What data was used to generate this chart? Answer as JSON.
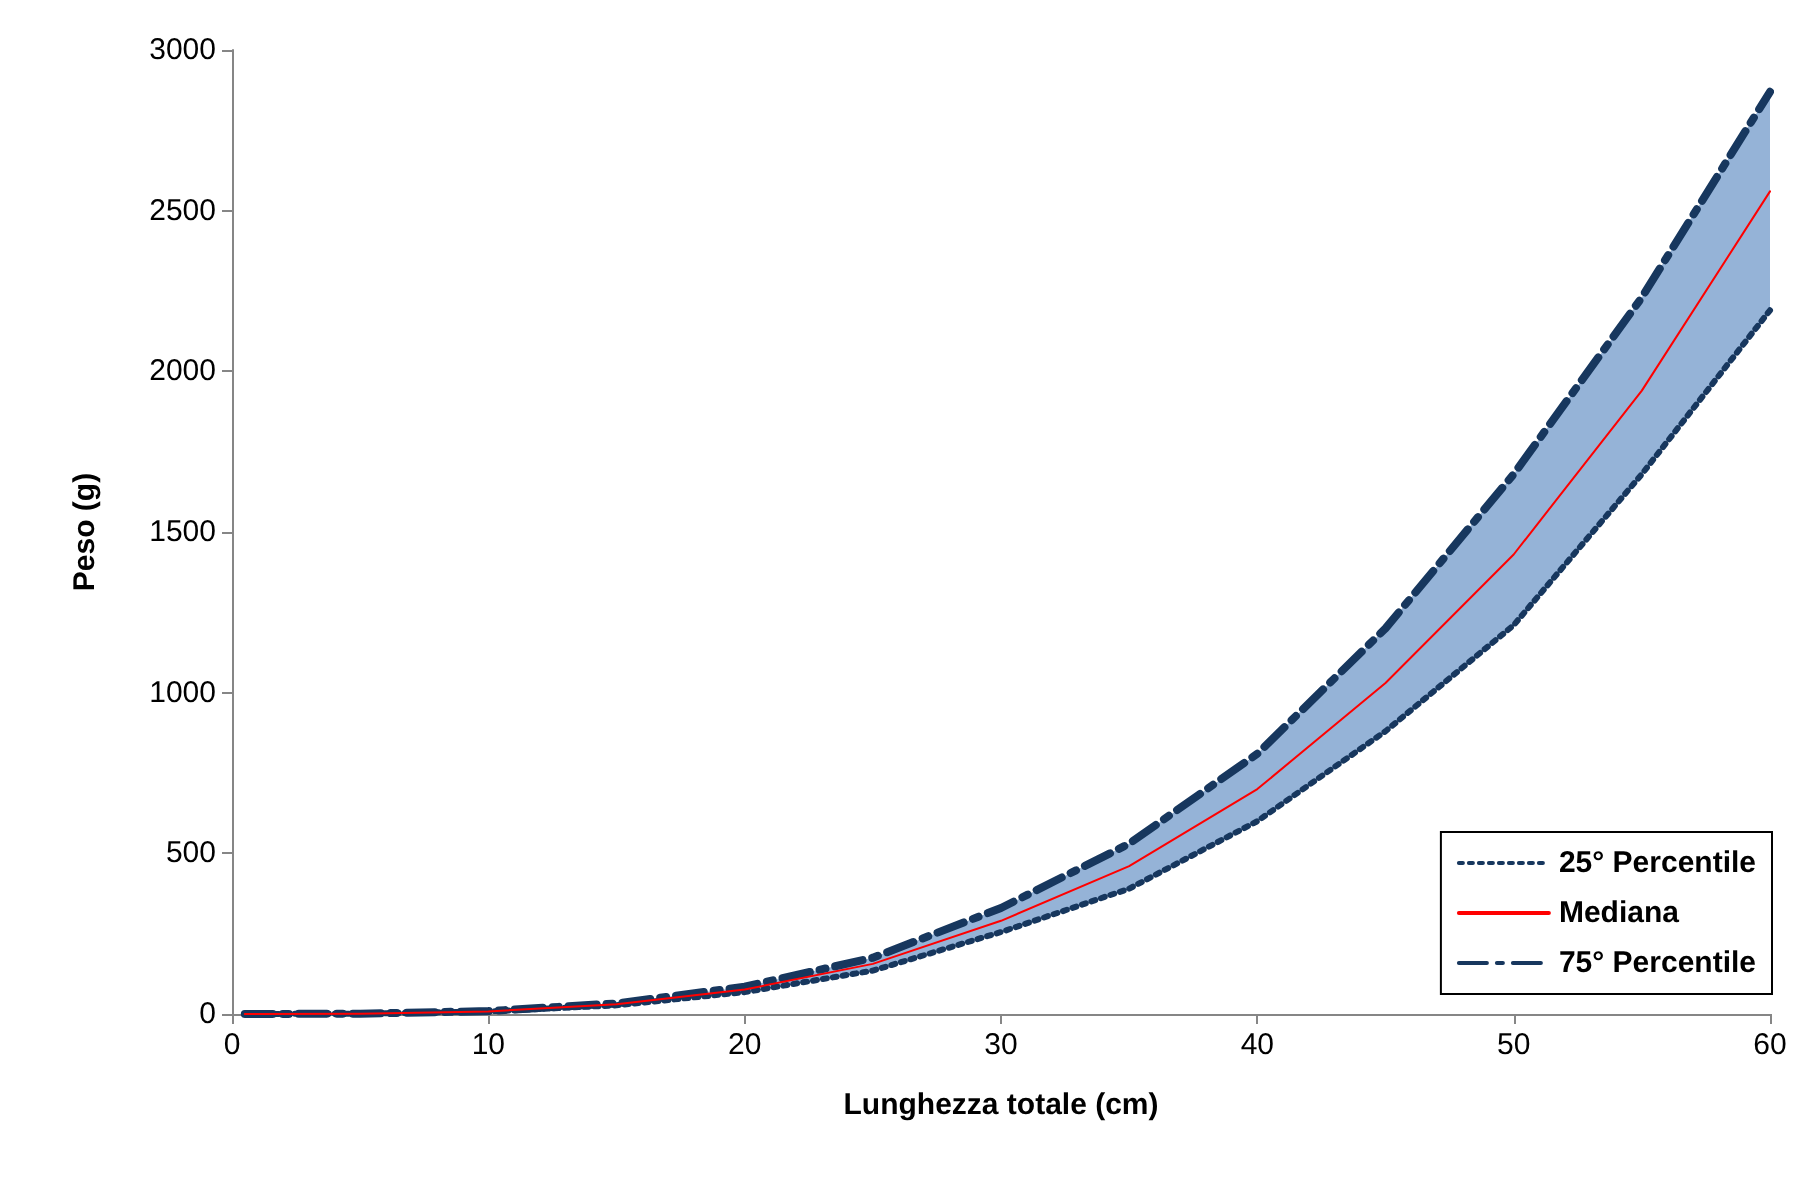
{
  "chart_data": {
    "type": "line",
    "xlabel": "Lunghezza totale (cm)",
    "ylabel": "Peso (g)",
    "x": [
      0.5,
      5,
      10,
      15,
      20,
      25,
      30,
      35,
      40,
      45,
      50,
      55,
      60
    ],
    "series": [
      {
        "name": "25° Percentile",
        "color": "#17375e",
        "line_style": "dotted",
        "values": [
          0,
          1,
          8,
          27,
          68,
          135,
          255,
          390,
          600,
          880,
          1210,
          1680,
          2190
        ]
      },
      {
        "name": "Mediana",
        "color": "#ff0000",
        "line_style": "solid",
        "values": [
          0,
          1,
          8,
          30,
          76,
          156,
          290,
          460,
          700,
          1030,
          1430,
          1940,
          2560
        ],
        "lower": [
          0,
          1,
          8,
          27,
          68,
          135,
          255,
          390,
          600,
          880,
          1210,
          1680,
          2190
        ],
        "upper": [
          0,
          1,
          9,
          33,
          85,
          175,
          330,
          530,
          810,
          1200,
          1680,
          2230,
          2870
        ]
      },
      {
        "name": "75° Percentile",
        "color": "#17375e",
        "line_style": "dashed",
        "values": [
          0,
          1,
          9,
          33,
          85,
          175,
          330,
          530,
          810,
          1200,
          1680,
          2230,
          2870
        ]
      }
    ],
    "xlim": [
      0,
      60
    ],
    "xticks": [
      0,
      10,
      20,
      30,
      40,
      50,
      60
    ],
    "ylim": [
      0,
      3000
    ],
    "yticks": [
      0,
      500,
      1000,
      1500,
      2000,
      2500,
      3000
    ],
    "grid": false,
    "legend": "bottom right",
    "marker": "none"
  }
}
